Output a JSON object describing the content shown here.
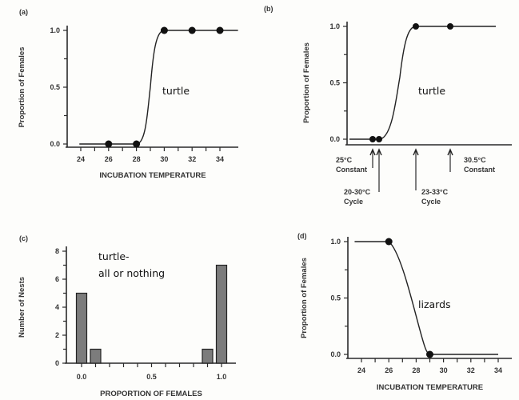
{
  "chart_data": [
    {
      "panel": "(a)",
      "type": "line",
      "xlabel": "INCUBATION TEMPERATURE",
      "ylabel": "Proportion of Females",
      "xticks": [
        "24",
        "26",
        "28",
        "30",
        "32",
        "34"
      ],
      "yticks": [
        "0.0",
        "0.5",
        "1.0"
      ],
      "xlim": [
        24,
        34
      ],
      "ylim": [
        0,
        1
      ],
      "points": {
        "x": [
          26,
          28,
          30,
          32,
          34
        ],
        "y": [
          0,
          0,
          1,
          1,
          1
        ]
      },
      "annotation": "turtle"
    },
    {
      "panel": "(b)",
      "type": "line",
      "ylabel": "Proportion of Females",
      "yticks": [
        "0.0",
        "0.5",
        "1.0"
      ],
      "ylim": [
        0,
        1
      ],
      "points": {
        "x": [
          25,
          25.5,
          28.2,
          30.5
        ],
        "y": [
          0,
          0,
          1,
          1
        ]
      },
      "arrows": [
        {
          "line1": "25°C",
          "line2": "Constant"
        },
        {
          "line1": "20-30°C",
          "line2": "Cycle"
        },
        {
          "line1": "23-33°C",
          "line2": "Cycle"
        },
        {
          "line1": "30.5°C",
          "line2": "Constant"
        }
      ],
      "annotation": "turtle"
    },
    {
      "panel": "(c)",
      "type": "bar",
      "xlabel": "PROPORTION OF FEMALES",
      "ylabel": "Number of Nests",
      "xticks": [
        "0.0",
        "0.5",
        "1.0"
      ],
      "yticks": [
        "0",
        "2",
        "4",
        "6",
        "8"
      ],
      "xlim": [
        0,
        1
      ],
      "ylim": [
        0,
        8
      ],
      "bars": {
        "x": [
          0.0,
          0.1,
          0.9,
          1.0
        ],
        "values": [
          5,
          1,
          1,
          7
        ]
      },
      "annotation_line1": "turtle-",
      "annotation_line2": "all or nothing"
    },
    {
      "panel": "(d)",
      "type": "line",
      "xlabel": "INCUBATION TEMPERATURE",
      "ylabel": "Proportion of Females",
      "xticks": [
        "24",
        "26",
        "28",
        "30",
        "32",
        "34"
      ],
      "yticks": [
        "0.0",
        "0.5",
        "1.0"
      ],
      "xlim": [
        24,
        34
      ],
      "ylim": [
        0,
        1
      ],
      "points": {
        "x": [
          26,
          29
        ],
        "y": [
          1,
          0
        ]
      },
      "annotation": "lizards"
    }
  ]
}
